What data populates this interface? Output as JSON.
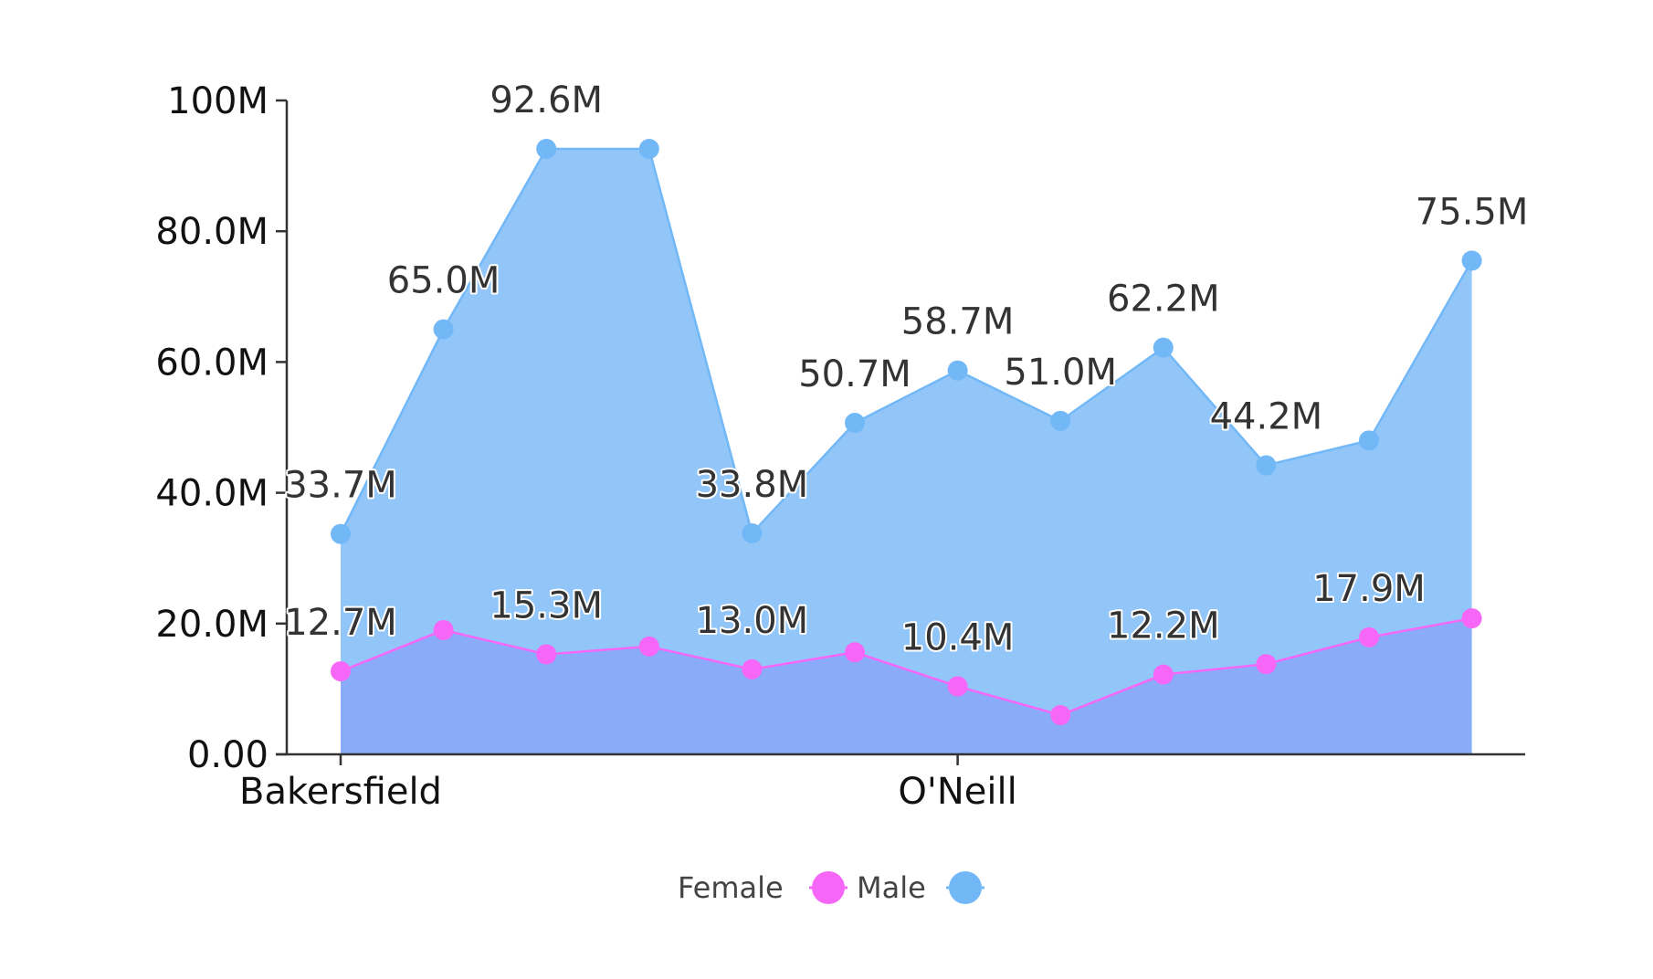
{
  "chart_data": {
    "type": "area",
    "title": "",
    "xlabel": "",
    "ylabel": "",
    "ylim": [
      0,
      100000000
    ],
    "y_ticks": [
      0,
      20000000,
      40000000,
      60000000,
      80000000,
      100000000
    ],
    "y_tick_labels": [
      "0.00",
      "20.0M",
      "40.0M",
      "60.0M",
      "80.0M",
      "100M"
    ],
    "x_tick_labels": [
      {
        "index": 0,
        "label": "Bakersfield"
      },
      {
        "index": 6,
        "label": "O'Neill"
      }
    ],
    "grid": false,
    "legend_position": "bottom",
    "series": [
      {
        "name": "Female",
        "color": "#f767f7",
        "fill": "#8aabf7",
        "values": [
          12700000,
          19000000,
          15300000,
          16500000,
          13000000,
          15600000,
          10400000,
          6000000,
          12200000,
          13800000,
          17900000,
          20800000
        ],
        "labels": [
          "12.7M",
          "",
          "15.3M",
          "",
          "13.0M",
          "",
          "10.4M",
          "",
          "12.2M",
          "",
          "17.9M",
          ""
        ]
      },
      {
        "name": "Male",
        "color": "#72b8f7",
        "fill": "#92c6f9",
        "values": [
          33700000,
          65000000,
          92600000,
          92600000,
          33800000,
          50700000,
          58700000,
          51000000,
          62200000,
          44200000,
          48000000,
          75500000
        ],
        "labels": [
          "33.7M",
          "65.0M",
          "92.6M",
          "",
          "33.8M",
          "50.7M",
          "58.7M",
          "51.0M",
          "62.2M",
          "44.2M",
          "",
          "75.5M"
        ]
      }
    ]
  }
}
